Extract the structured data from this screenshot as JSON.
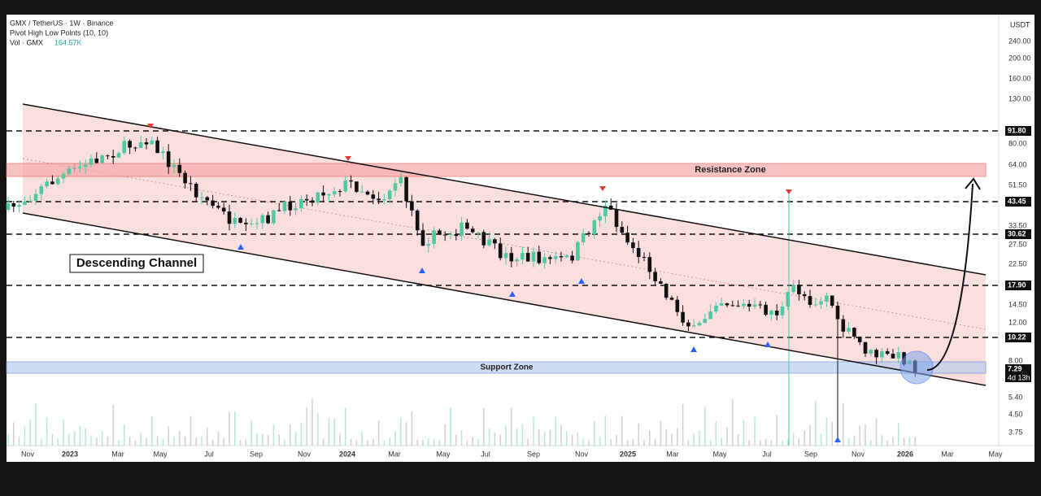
{
  "header": {
    "symbol": "GMX / TetherUS · 1W · Binance",
    "indicator": "Pivot High Low Points (10, 10)",
    "volume_label": "Vol · GMX",
    "volume_value": "164.57K"
  },
  "price_axis": {
    "unit": "USDT",
    "ticks": [
      "240.00",
      "200.00",
      "160.00",
      "130.00",
      "80.00",
      "64.00",
      "51.50",
      "33.50",
      "27.50",
      "22.50",
      "14.50",
      "12.00",
      "8.00",
      "5.40",
      "4.50",
      "3.75"
    ]
  },
  "levels": [
    "91.80",
    "43.45",
    "30.62",
    "17.90",
    "10.22"
  ],
  "current": {
    "price": "7.29",
    "countdown": "4d 13h"
  },
  "time_axis": [
    "Nov",
    "2023",
    "Mar",
    "May",
    "Jul",
    "Sep",
    "Nov",
    "2024",
    "Mar",
    "May",
    "Jul",
    "Sep",
    "Nov",
    "2025",
    "Mar",
    "May",
    "Jul",
    "Sep",
    "Nov",
    "2026",
    "Mar",
    "May"
  ],
  "annotations": {
    "resistance": "Resistance Zone",
    "support": "Support Zone",
    "channel": "Descending Channel"
  }
}
